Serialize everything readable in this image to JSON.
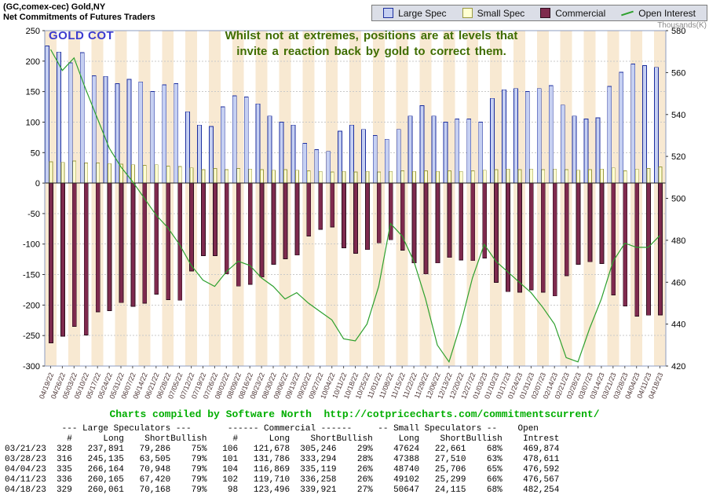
{
  "header": {
    "title_line1": "(GC,comex-cec) Gold,NY",
    "title_line2": "Net Commitments of Futures Traders",
    "legend": [
      {
        "label": "Large Spec",
        "color": "#c6d0f2",
        "border": "#1c2e9e",
        "type": "box"
      },
      {
        "label": "Small Spec",
        "color": "#ffffd2",
        "border": "#9a9a40",
        "type": "box"
      },
      {
        "label": "Commercial",
        "color": "#7e2a4e",
        "border": "#2e0e1e",
        "type": "box"
      },
      {
        "label": "Open Interest",
        "color": "#2da02d",
        "type": "line"
      }
    ]
  },
  "chart": {
    "watermark": "GOLD COT",
    "annotation_line1": "Whilst not at extremes, positions are at levels that",
    "annotation_line2": "invite a reaction back by gold to correct them.",
    "right_axis_title": "Thousands(K)"
  },
  "chart_data": {
    "type": "bar",
    "title": "Net Commitments of Futures Traders - (GC,comex-cec) Gold,NY",
    "stripe_color": "#f8e9d2",
    "date_label_color": "#4a3333",
    "left_axis": {
      "min": -300,
      "max": 250,
      "step": 50,
      "ticks": [
        250,
        200,
        150,
        100,
        50,
        0,
        -50,
        -100,
        -150,
        -200,
        -250,
        -300
      ]
    },
    "right_axis": {
      "min": 420,
      "max": 580,
      "step": 20,
      "title": "Thousands(K)",
      "ticks": [
        580,
        560,
        540,
        520,
        500,
        480,
        460,
        440,
        420
      ]
    },
    "categories": [
      "04/19/22",
      "04/26/22",
      "05/03/22",
      "05/10/22",
      "05/17/22",
      "05/24/22",
      "05/31/22",
      "06/07/22",
      "06/14/22",
      "06/21/22",
      "06/28/22",
      "07/05/22",
      "07/12/22",
      "07/19/22",
      "07/26/22",
      "08/02/22",
      "08/09/22",
      "08/16/22",
      "08/23/22",
      "08/30/22",
      "09/06/22",
      "09/13/22",
      "09/20/22",
      "09/27/22",
      "10/04/22",
      "10/11/22",
      "10/18/22",
      "10/25/22",
      "11/01/22",
      "11/08/22",
      "11/15/22",
      "11/22/22",
      "11/29/22",
      "12/06/22",
      "12/13/22",
      "12/20/22",
      "12/27/22",
      "01/03/23",
      "01/10/23",
      "01/17/23",
      "01/24/23",
      "01/31/23",
      "02/07/23",
      "02/14/23",
      "02/21/23",
      "02/28/23",
      "03/07/23",
      "03/14/23",
      "03/21/23",
      "03/28/23",
      "04/04/23",
      "04/11/23",
      "04/18/23"
    ],
    "series": [
      {
        "name": "Large Spec",
        "type": "bar",
        "axis": "left",
        "color": "#c6d0f2",
        "border": "#1c2e9e",
        "values": [
          225,
          215,
          197,
          214,
          176,
          175,
          163,
          170,
          166,
          150,
          161,
          163,
          117,
          95,
          93,
          125,
          143,
          141,
          130,
          110,
          100,
          95,
          65,
          55,
          52,
          85,
          95,
          88,
          78,
          72,
          88,
          110,
          127,
          110,
          100,
          105,
          105,
          100,
          139,
          153,
          155,
          150,
          155,
          160,
          128,
          110,
          105,
          107,
          158.6,
          181.6,
          195.2,
          192.7,
          189.9
        ]
      },
      {
        "name": "Small Spec",
        "type": "bar",
        "axis": "left",
        "color": "#ffffd2",
        "border": "#9a9a40",
        "values": [
          35,
          34,
          36,
          33,
          33,
          32,
          31,
          30,
          29,
          30,
          28,
          27,
          25,
          22,
          24,
          22,
          24,
          23,
          22,
          21,
          22,
          21,
          20,
          19,
          18,
          19,
          18,
          19,
          18,
          19,
          20,
          19,
          20,
          19,
          20,
          19,
          20,
          21,
          22,
          23,
          22,
          23,
          22,
          23,
          22,
          21,
          22,
          23,
          25,
          19.9,
          23,
          23.8,
          26.5
        ]
      },
      {
        "name": "Commercial",
        "type": "bar",
        "axis": "left",
        "color": "#7e2a4e",
        "border": "#2e0e1e",
        "values": [
          -262,
          -251,
          -235,
          -249,
          -211,
          -209,
          -196,
          -202,
          -197,
          -182,
          -191,
          -192,
          -144,
          -119,
          -119,
          -149,
          -169,
          -166,
          -154,
          -133,
          -124,
          -118,
          -87,
          -76,
          -72,
          -106,
          -115,
          -109,
          -98,
          -93,
          -110,
          -131,
          -149,
          -131,
          -122,
          -126,
          -127,
          -123,
          -163,
          -178,
          -179,
          -175,
          -179,
          -185,
          -152,
          -133,
          -129,
          -132,
          -183.6,
          -201.5,
          -218.3,
          -216.5,
          -216.4
        ]
      },
      {
        "name": "Open Interest",
        "type": "line",
        "axis": "right",
        "color": "#2da02d",
        "values": [
          571,
          561,
          567,
          552,
          538,
          524,
          515,
          508,
          500,
          492,
          486,
          478,
          468,
          461,
          458,
          465,
          470,
          468,
          462,
          458,
          452,
          455,
          450,
          446,
          442,
          433,
          432,
          440,
          458,
          488,
          482,
          470,
          452,
          430,
          422,
          440,
          462,
          478,
          470,
          465,
          460,
          455,
          448,
          440,
          424,
          422,
          438,
          452,
          469.9,
          478.6,
          476.6,
          476.6,
          482.3
        ]
      }
    ]
  },
  "footer": {
    "credit": "Charts compiled by Software North  http://cotpricecharts.com/commitmentscurrent/"
  },
  "table": {
    "group_headers": [
      "--- Large Speculators ---",
      "------ Commercial ------",
      "-- Small Speculators --",
      "Open"
    ],
    "col_headers": [
      "",
      "#",
      "Long",
      "Short",
      "Bullish",
      "#",
      "Long",
      "Short",
      "Bullish",
      "Long",
      "Short",
      "Bullish",
      "Intrest"
    ],
    "rows": [
      [
        "03/21/23",
        "328",
        "237,891",
        "79,286",
        "75%",
        "106",
        "121,678",
        "305,246",
        "29%",
        "47624",
        "22,661",
        "68%",
        "469,874"
      ],
      [
        "03/28/23",
        "316",
        "245,135",
        "63,505",
        "79%",
        "101",
        "131,786",
        "333,294",
        "28%",
        "47388",
        "27,510",
        "63%",
        "478,611"
      ],
      [
        "04/04/23",
        "335",
        "266,164",
        "70,948",
        "79%",
        "104",
        "116,869",
        "335,119",
        "26%",
        "48740",
        "25,706",
        "65%",
        "476,592"
      ],
      [
        "04/11/23",
        "336",
        "260,165",
        "67,420",
        "79%",
        "102",
        "119,710",
        "336,258",
        "26%",
        "49102",
        "25,299",
        "66%",
        "476,567"
      ],
      [
        "04/18/23",
        "329",
        "260,061",
        "70,168",
        "79%",
        "98",
        "123,496",
        "339,921",
        "27%",
        "50647",
        "24,115",
        "68%",
        "482,254"
      ]
    ]
  }
}
